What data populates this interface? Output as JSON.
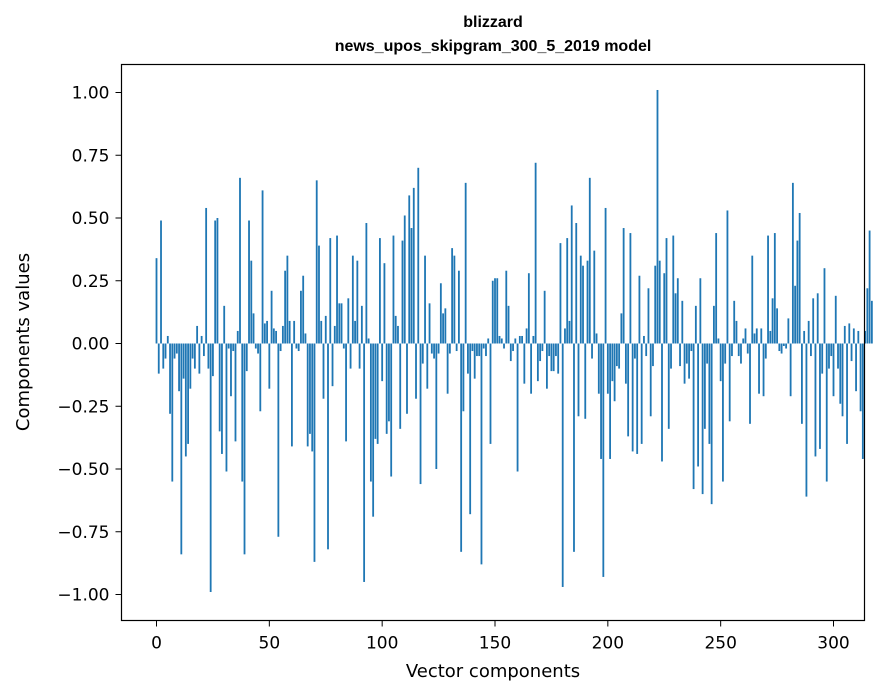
{
  "chart_data": {
    "type": "bar",
    "title": "blizzard",
    "subtitle": "news_upos_skipgram_300_5_2019 model",
    "xlabel": "Vector components",
    "ylabel": "Components values",
    "xlim": [
      -5,
      314
    ],
    "ylim": [
      -1.1,
      1.1
    ],
    "xticks": [
      0,
      50,
      100,
      150,
      200,
      250,
      300
    ],
    "xtick_labels": [
      "0",
      "50",
      "100",
      "150",
      "200",
      "250",
      "300"
    ],
    "yticks": [
      1.0,
      0.75,
      0.5,
      0.25,
      0.0,
      -0.25,
      -0.5,
      -0.75,
      -1.0
    ],
    "ytick_labels": [
      "1.00",
      "0.75",
      "0.50",
      "0.25",
      "0.00",
      "−0.25",
      "−0.50",
      "−0.75",
      "−1.00"
    ],
    "bar_color": "#1f77b4",
    "grid": false,
    "values": [
      0.34,
      -0.12,
      0.49,
      -0.1,
      -0.06,
      0.03,
      -0.28,
      -0.55,
      -0.06,
      -0.04,
      -0.19,
      -0.84,
      -0.14,
      -0.45,
      -0.4,
      -0.18,
      -0.06,
      -0.1,
      0.07,
      -0.12,
      0.03,
      -0.05,
      0.54,
      -0.1,
      -0.99,
      -0.13,
      0.49,
      0.5,
      -0.35,
      -0.44,
      0.15,
      -0.51,
      -0.02,
      -0.21,
      -0.03,
      -0.39,
      0.05,
      0.66,
      -0.55,
      -0.84,
      -0.11,
      0.49,
      0.33,
      0.12,
      -0.02,
      -0.04,
      -0.27,
      0.61,
      0.08,
      0.09,
      -0.18,
      0.21,
      0.06,
      0.05,
      -0.77,
      -0.03,
      0.07,
      0.29,
      0.35,
      0.09,
      -0.41,
      0.09,
      -0.02,
      -0.03,
      0.21,
      0.27,
      0.04,
      -0.41,
      -0.36,
      -0.43,
      -0.87,
      0.65,
      0.39,
      0.09,
      -0.22,
      0.11,
      -0.82,
      0.42,
      -0.17,
      0.07,
      0.43,
      0.16,
      0.16,
      -0.02,
      -0.39,
      0.18,
      -0.1,
      0.35,
      0.09,
      0.33,
      -0.1,
      0.15,
      -0.95,
      0.48,
      0.02,
      -0.55,
      -0.69,
      -0.38,
      -0.4,
      0.42,
      -0.15,
      0.32,
      -0.36,
      -0.31,
      -0.53,
      0.43,
      0.11,
      0.07,
      -0.34,
      0.41,
      0.51,
      -0.28,
      0.59,
      0.46,
      0.62,
      -0.22,
      0.7,
      -0.56,
      -0.08,
      0.35,
      -0.18,
      0.16,
      -0.04,
      -0.06,
      -0.5,
      -0.04,
      0.24,
      0.12,
      0.14,
      -0.2,
      -0.04,
      0.38,
      0.35,
      -0.03,
      0.29,
      -0.83,
      -0.27,
      0.64,
      -0.12,
      -0.68,
      -0.03,
      -0.14,
      -0.05,
      -0.05,
      -0.88,
      -0.02,
      -0.05,
      0.02,
      -0.4,
      0.25,
      0.26,
      0.26,
      0.03,
      0.02,
      -0.02,
      0.29,
      0.15,
      -0.07,
      -0.03,
      0.02,
      -0.51,
      0.03,
      0.03,
      -0.16,
      0.06,
      0.28,
      -0.2,
      0.03,
      0.72,
      -0.15,
      -0.07,
      -0.03,
      0.21,
      -0.18,
      -0.05,
      -0.11,
      -0.11,
      -0.05,
      -0.12,
      0.4,
      -0.97,
      0.06,
      0.42,
      0.09,
      0.55,
      -0.83,
      0.48,
      -0.29,
      0.35,
      0.31,
      -0.3,
      0.33,
      0.66,
      -0.06,
      0.37,
      0.04,
      -0.2,
      -0.46,
      -0.93,
      0.54,
      -0.2,
      -0.46,
      -0.15,
      -0.23,
      -0.09,
      -0.1,
      0.12,
      0.46,
      -0.16,
      -0.37,
      0.44,
      -0.43,
      -0.06,
      -0.44,
      0.27,
      -0.4,
      0.03,
      -0.05,
      0.22,
      -0.29,
      -0.09,
      0.31,
      1.01,
      0.33,
      -0.47,
      0.28,
      0.42,
      -0.34,
      -0.1,
      0.43,
      0.2,
      0.26,
      -0.09,
      0.17,
      -0.16,
      -0.08,
      -0.14,
      -0.03,
      -0.58,
      0.15,
      -0.49,
      0.26,
      -0.6,
      -0.34,
      -0.08,
      -0.4,
      -0.64,
      0.15,
      0.44,
      0.02,
      -0.15,
      -0.55,
      -0.08,
      0.53,
      -0.31,
      -0.05,
      0.17,
      0.09,
      -0.05,
      -0.08,
      0.02,
      0.06,
      -0.04,
      -0.32,
      0.35,
      0.04,
      0.06,
      -0.2,
      0.06,
      -0.21,
      -0.06,
      0.43,
      0.05,
      0.18,
      0.44,
      0.14,
      -0.03,
      -0.04,
      -0.01,
      -0.02,
      0.1,
      -0.21,
      0.64,
      0.23,
      0.41,
      0.52,
      -0.32,
      0.05,
      -0.61,
      0.09,
      -0.05,
      0.18,
      -0.45,
      0.2,
      -0.42,
      -0.12,
      0.3,
      -0.55,
      -0.1,
      -0.05,
      -0.21,
      0.19,
      -0.1,
      -0.24,
      -0.29,
      0.07,
      -0.4,
      0.08,
      -0.07,
      0.06,
      -0.19,
      0.05,
      -0.27,
      -0.46,
      0.05,
      0.22,
      0.45,
      0.17
    ]
  }
}
